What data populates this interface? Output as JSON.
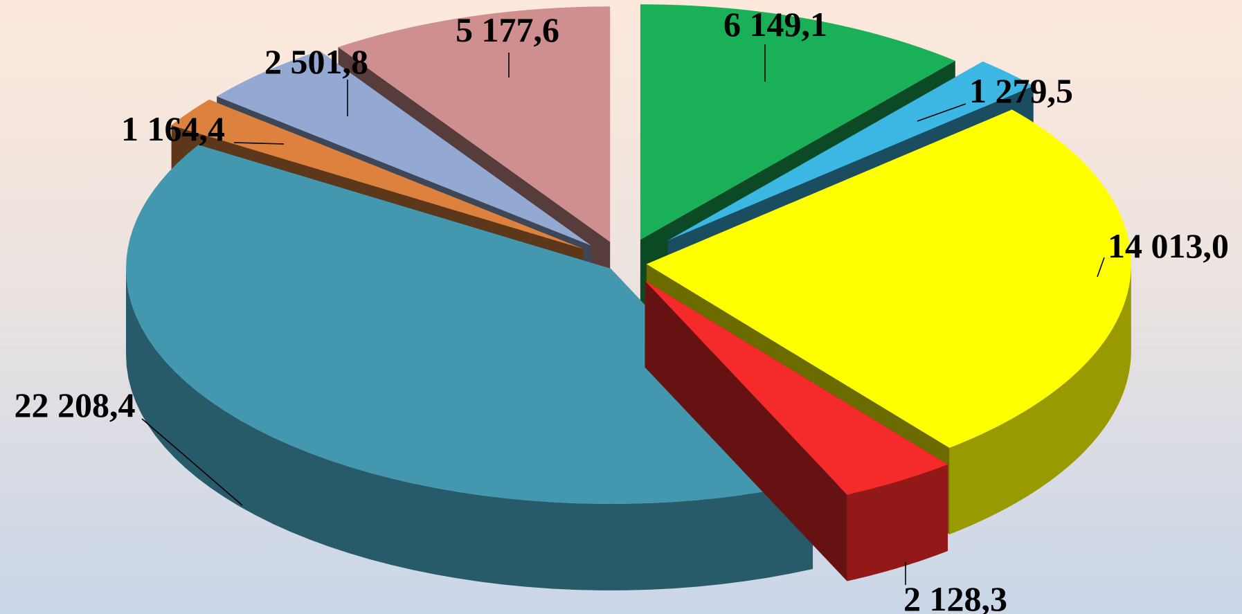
{
  "chart_data": {
    "type": "pie",
    "title": "",
    "slices": [
      {
        "label": "6 149,1",
        "value": 6149.1,
        "color": "#1ab058"
      },
      {
        "label": "1 279,5",
        "value": 1279.5,
        "color": "#3cb7e3"
      },
      {
        "label": "14 013,0",
        "value": 14013.0,
        "color": "#ffff00"
      },
      {
        "label": "2 128,3",
        "value": 2128.3,
        "color": "#f52a2a"
      },
      {
        "label": "22 208,4",
        "value": 22208.4,
        "color": "#4398b0"
      },
      {
        "label": "1 164,4",
        "value": 1164.4,
        "color": "#dc823e"
      },
      {
        "label": "2 501,8",
        "value": 2501.8,
        "color": "#93a9d2"
      },
      {
        "label": "5 177,6",
        "value": 5177.6,
        "color": "#cf8f8f"
      }
    ],
    "legend": "none",
    "grid": false
  }
}
